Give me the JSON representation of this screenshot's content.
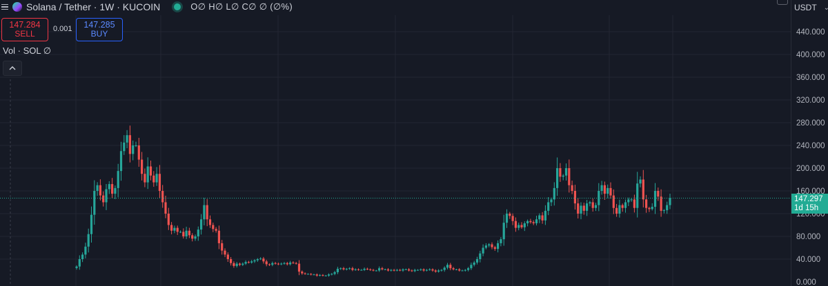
{
  "header": {
    "symbol": "Solana / Tether · 1W · KUCOIN",
    "ohlc": "O∅ H∅ L∅ C∅ ∅ (∅%)",
    "currency": "USDT"
  },
  "trade": {
    "sell_price": "147.284",
    "sell_label": "SELL",
    "spread": "0.001",
    "buy_price": "147.285",
    "buy_label": "BUY"
  },
  "volume_label": "Vol · SOL  ∅",
  "last_price": {
    "value": "147.297",
    "countdown": "1d 15h"
  },
  "colors": {
    "up": "#26a69a",
    "down": "#ef5350",
    "background": "#161a25",
    "grid": "#232632",
    "axis_text": "#b2b5be",
    "price_line": "#22ab94"
  },
  "chart_data": {
    "type": "candlestick",
    "title": "Solana / Tether · 1W · KUCOIN",
    "ylabel": "USDT",
    "ylim": [
      0,
      460
    ],
    "grid": true,
    "y_ticks": [
      "0.000",
      "40.000",
      "80.000",
      "120.000",
      "160.000",
      "200.000",
      "240.000",
      "280.000",
      "320.000",
      "360.000",
      "400.000",
      "440.000"
    ],
    "last_price": 147.297,
    "closes": [
      27,
      40,
      48,
      62,
      84,
      118,
      160,
      170,
      152,
      140,
      163,
      172,
      155,
      165,
      195,
      230,
      245,
      258,
      225,
      240,
      240,
      215,
      190,
      175,
      203,
      187,
      175,
      190,
      160,
      140,
      120,
      100,
      90,
      95,
      88,
      88,
      80,
      90,
      82,
      76,
      80,
      92,
      110,
      135,
      110,
      100,
      93,
      90,
      68,
      55,
      48,
      40,
      33,
      28,
      32,
      30,
      32,
      35,
      34,
      36,
      38,
      40,
      41,
      36,
      31,
      30,
      33,
      32,
      31,
      32,
      33,
      31,
      34,
      33,
      32,
      18,
      15,
      14,
      14,
      13,
      13,
      11,
      12,
      11,
      11,
      13,
      14,
      17,
      23,
      24,
      22,
      23,
      24,
      21,
      22,
      21,
      21,
      23,
      22,
      21,
      20,
      20,
      24,
      22,
      22,
      20,
      21,
      20,
      21,
      20,
      22,
      22,
      20,
      19,
      21,
      21,
      22,
      20,
      21,
      22,
      20,
      18,
      20,
      21,
      25,
      30,
      24,
      22,
      22,
      20,
      20,
      21,
      24,
      30,
      34,
      40,
      50,
      60,
      64,
      66,
      61,
      58,
      68,
      75,
      104,
      120,
      116,
      107,
      95,
      100,
      96,
      103,
      107,
      105,
      103,
      110,
      117,
      108,
      125,
      140,
      145,
      165,
      200,
      185,
      187,
      200,
      170,
      160,
      138,
      120,
      134,
      125,
      138,
      140,
      130,
      135,
      160,
      170,
      155,
      165,
      152,
      130,
      120,
      135,
      130,
      140,
      145,
      145,
      130,
      173,
      180,
      145,
      130,
      128,
      132,
      160,
      150,
      125,
      126,
      135,
      147.297
    ]
  }
}
